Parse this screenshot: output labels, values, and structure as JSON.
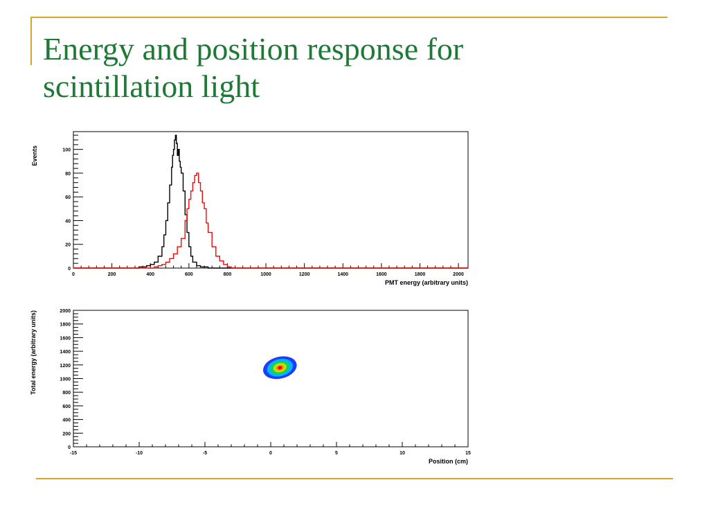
{
  "slide": {
    "title_line1": "Energy and position response for",
    "title_line2": "scintillation light",
    "accent_color": "#d6a628",
    "title_color": "#1d7a35"
  },
  "chart_data": [
    {
      "type": "line",
      "subtype": "histogram",
      "xlabel": "PMT energy (arbitrary units)",
      "ylabel": "Events",
      "xlim": [
        0,
        2050
      ],
      "ylim": [
        0,
        115
      ],
      "xticks": [
        0,
        200,
        400,
        600,
        800,
        1000,
        1200,
        1400,
        1600,
        1800,
        2000
      ],
      "yticks": [
        0,
        20,
        40,
        60,
        80,
        100
      ],
      "grid": false,
      "legend": "none",
      "series": [
        {
          "color": "#000000",
          "x": [
            300,
            340,
            380,
            400,
            420,
            440,
            460,
            470,
            480,
            490,
            500,
            510,
            515,
            520,
            525,
            530,
            535,
            540,
            545,
            550,
            555,
            560,
            570,
            580,
            590,
            600,
            610,
            620,
            640,
            660,
            700
          ],
          "values": [
            0,
            1,
            2,
            3,
            5,
            10,
            18,
            28,
            40,
            55,
            70,
            85,
            95,
            100,
            108,
            112,
            105,
            95,
            100,
            90,
            85,
            80,
            65,
            45,
            30,
            18,
            10,
            5,
            2,
            1,
            0
          ]
        },
        {
          "color": "#ff0000",
          "x": [
            400,
            420,
            440,
            460,
            480,
            500,
            520,
            540,
            560,
            580,
            590,
            600,
            610,
            620,
            630,
            640,
            650,
            660,
            670,
            680,
            690,
            700,
            720,
            740,
            760,
            780,
            800,
            820,
            850
          ],
          "values": [
            0,
            1,
            2,
            3,
            5,
            8,
            12,
            18,
            25,
            40,
            50,
            58,
            65,
            72,
            78,
            80,
            72,
            65,
            55,
            50,
            38,
            30,
            18,
            10,
            6,
            3,
            1,
            0,
            0
          ]
        }
      ]
    },
    {
      "type": "heatmap",
      "xlabel": "Position (cm)",
      "ylabel": "Total energy (arbitrary units)",
      "xlim": [
        -15,
        15
      ],
      "ylim": [
        0,
        2000
      ],
      "xticks": [
        -15,
        -10,
        -5,
        0,
        5,
        10,
        15
      ],
      "yticks": [
        0,
        200,
        400,
        600,
        800,
        1000,
        1200,
        1400,
        1600,
        1800,
        2000
      ],
      "grid": false,
      "legend": "none",
      "blob": {
        "center_x": 0.7,
        "center_y": 1160,
        "levels": [
          {
            "color": "#1e3cff",
            "half_width": 1.3,
            "half_height": 160
          },
          {
            "color": "#00b4ff",
            "half_width": 1.0,
            "half_height": 125
          },
          {
            "color": "#14d25a",
            "half_width": 0.75,
            "half_height": 95
          },
          {
            "color": "#c8e600",
            "half_width": 0.5,
            "half_height": 65
          },
          {
            "color": "#ff8c00",
            "half_width": 0.32,
            "half_height": 42
          },
          {
            "color": "#e60000",
            "half_width": 0.16,
            "half_height": 22
          }
        ]
      }
    }
  ]
}
